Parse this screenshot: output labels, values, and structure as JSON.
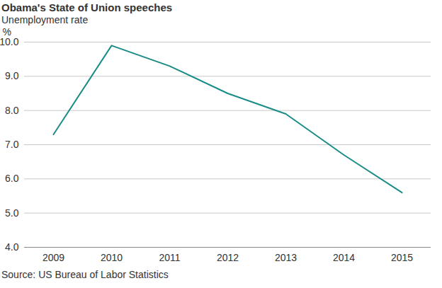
{
  "chart_data": {
    "type": "line",
    "title": "Obama's State of Union speeches",
    "subtitle": "Unemployment rate",
    "y_label": "%",
    "caption": "Source: US Bureau of Labor Statistics",
    "categories": [
      "2009",
      "2010",
      "2011",
      "2012",
      "2013",
      "2014",
      "2015"
    ],
    "values": [
      7.3,
      9.9,
      9.3,
      8.5,
      7.9,
      6.7,
      5.6
    ],
    "color": "#1a8c87",
    "ylim": [
      4,
      10
    ],
    "yticks": [
      4,
      5,
      6,
      7,
      8,
      9,
      10
    ],
    "grid": true
  }
}
